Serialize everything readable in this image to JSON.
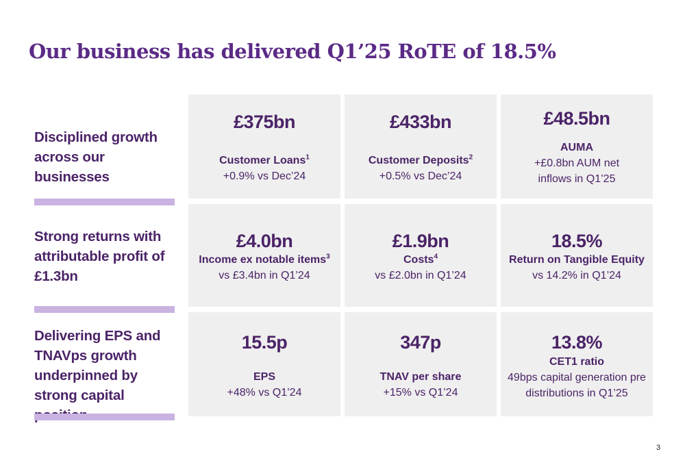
{
  "title": "Our business has delivered Q1’25 RoTE of 18.5%",
  "rows": [
    {
      "label": "Disciplined growth across our businesses"
    },
    {
      "label": "Strong returns with attributable profit of £1.3bn"
    },
    {
      "label": "Delivering EPS and TNAVps growth underpinned by strong capital position"
    }
  ],
  "cells": {
    "loans": {
      "value": "£375bn",
      "label": "Customer Loans",
      "sup": "1",
      "sub": "+0.9% vs Dec’24"
    },
    "deposits": {
      "value": "£433bn",
      "label": "Customer Deposits",
      "sup": "2",
      "sub": "+0.5% vs Dec’24"
    },
    "auma": {
      "value": "£48.5bn",
      "label": "AUMA",
      "sub1": "+£0.8bn AUM net",
      "sub2": "inflows in Q1’25"
    },
    "income": {
      "value": "£4.0bn",
      "label": "Income ex notable items",
      "sup": "3",
      "sub": "vs £3.4bn in Q1’24"
    },
    "costs": {
      "value": "£1.9bn",
      "label": "Costs",
      "sup": "4",
      "sub": "vs £2.0bn in Q1’24"
    },
    "rote": {
      "value": "18.5%",
      "label": "Return on Tangible Equity",
      "sub": "vs 14.2% in Q1’24"
    },
    "eps": {
      "value": "15.5p",
      "label": "EPS",
      "sub": "+48% vs Q1’24"
    },
    "tnav": {
      "value": "347p",
      "label": "TNAV per share",
      "sub": "+15% vs Q1’24"
    },
    "cet1": {
      "value": "13.8%",
      "label": "CET1 ratio",
      "sub1": "49bps capital generation pre",
      "sub2": "distributions in Q1’25"
    }
  },
  "page_number": "3"
}
